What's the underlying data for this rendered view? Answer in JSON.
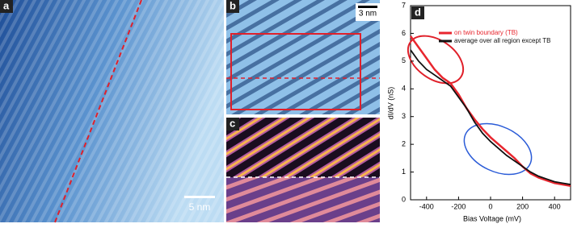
{
  "images": [
    {
      "panel_label": "a",
      "scale_bar": "5 nm"
    },
    {
      "panel_label": "b",
      "scale_bar": "3 nm"
    },
    {
      "panel_label": "c"
    }
  ],
  "chart_data": {
    "type": "line",
    "panel_label": "d",
    "x_label": "Bias Voltage (mV)",
    "y_label": "dI/dV (nS)",
    "x": [
      -500,
      -450,
      -400,
      -350,
      -300,
      -250,
      -200,
      -150,
      -100,
      -50,
      0,
      50,
      100,
      150,
      200,
      250,
      300,
      350,
      400,
      450,
      500
    ],
    "series": [
      {
        "name": "on twin boundary (TB)",
        "color": "#e8262e",
        "values": [
          5.9,
          5.5,
          5.1,
          4.7,
          4.4,
          4.2,
          3.8,
          3.3,
          2.9,
          2.55,
          2.25,
          2.0,
          1.75,
          1.5,
          1.2,
          0.95,
          0.8,
          0.7,
          0.6,
          0.55,
          0.5
        ]
      },
      {
        "name": "average over all region except TB",
        "color": "#111111",
        "values": [
          5.4,
          5.0,
          4.7,
          4.5,
          4.3,
          4.1,
          3.7,
          3.3,
          2.8,
          2.4,
          2.1,
          1.85,
          1.6,
          1.4,
          1.2,
          1.0,
          0.85,
          0.75,
          0.65,
          0.6,
          0.55
        ]
      }
    ],
    "xlim": [
      -500,
      500
    ],
    "xticks": [
      -400,
      -200,
      0,
      200,
      400
    ],
    "ylim": [
      0,
      7
    ],
    "yticks": [
      0,
      1,
      2,
      3,
      4,
      5,
      6,
      7
    ]
  }
}
